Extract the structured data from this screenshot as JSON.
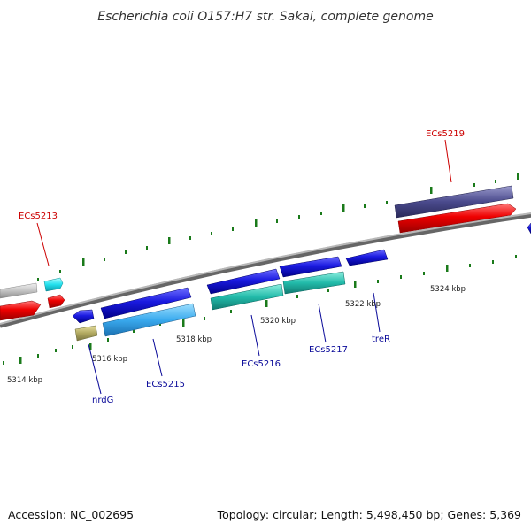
{
  "title": "Escherichia coli O157:H7 str. Sakai, complete genome",
  "footer": {
    "accession": "Accession: NC_002695",
    "summary": "Topology: circular; Length: 5,498,450 bp; Genes: 5,369"
  },
  "ticks": [
    "5314 kbp",
    "5316 kbp",
    "5318 kbp",
    "5320 kbp",
    "5322 kbp",
    "5324 kbp"
  ],
  "gene_labels": [
    {
      "id": "ecs5213",
      "text": "ECs5213",
      "color": "#cc0000"
    },
    {
      "id": "ecs5219",
      "text": "ECs5219",
      "color": "#cc0000"
    },
    {
      "id": "nrdg",
      "text": "nrdG",
      "color": "#0a0a99"
    },
    {
      "id": "ecs5215",
      "text": "ECs5215",
      "color": "#0a0a99"
    },
    {
      "id": "ecs5216",
      "text": "ECs5216",
      "color": "#0a0a99"
    },
    {
      "id": "ecs5217",
      "text": "ECs5217",
      "color": "#0a0a99"
    },
    {
      "id": "trer",
      "text": "treR",
      "color": "#0a0a99"
    }
  ],
  "colors": {
    "backbone": "#8a8a8a",
    "tick_mark": "#1a7a1a",
    "forward_cds": "#1a1ae0",
    "reverse_cds": "#e00000",
    "sky_cds": "#3aaaee",
    "teal_cds": "#22bbaa",
    "navy_cds": "#4a4a8c",
    "gray_cds": "#bdbdbd",
    "cyan_cds": "#22e0ee",
    "olive_cds": "#b0a860"
  }
}
